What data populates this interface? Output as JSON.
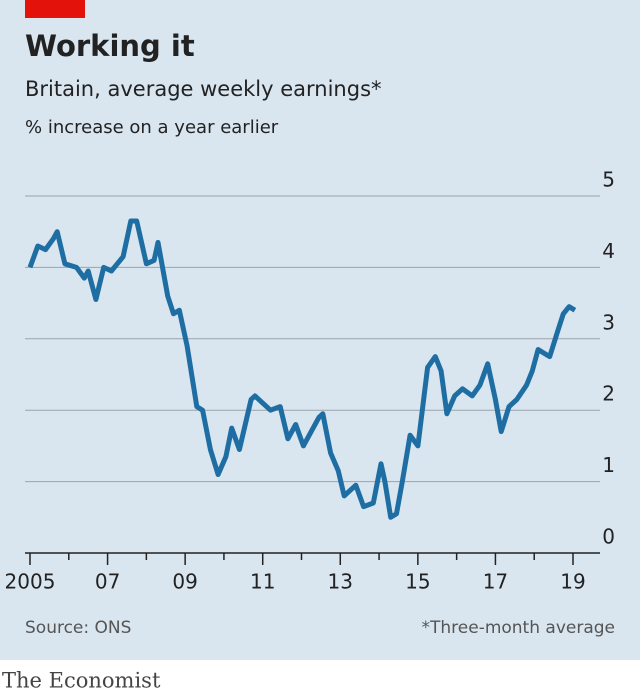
{
  "chart_data": {
    "type": "line",
    "title": "Working it",
    "subtitle": "Britain, average weekly earnings*",
    "unit_label": "% increase on a year earlier",
    "source": "Source: ONS",
    "footnote": "*Three-month average",
    "publisher": "The Economist",
    "ylim": [
      0,
      5
    ],
    "yticks": [
      0,
      1,
      2,
      3,
      4,
      5
    ],
    "grid": true,
    "xlim": [
      2005,
      2019
    ],
    "xticks": [
      2005,
      {
        "value": 2007,
        "label": "07"
      },
      {
        "value": 2009,
        "label": "09"
      },
      {
        "value": 2011,
        "label": "11"
      },
      {
        "value": 2013,
        "label": "13"
      },
      {
        "value": 2015,
        "label": "15"
      },
      {
        "value": 2017,
        "label": "17"
      },
      {
        "value": 2019,
        "label": "19"
      }
    ],
    "xminorticks": [
      2006,
      2008,
      2010,
      2012,
      2014,
      2016,
      2018
    ],
    "x": [
      2005.0,
      2005.2,
      2005.4,
      2005.6,
      2005.7,
      2005.9,
      2006.2,
      2006.4,
      2006.5,
      2006.7,
      2006.9,
      2007.1,
      2007.4,
      2007.6,
      2007.75,
      2008.0,
      2008.2,
      2008.3,
      2008.55,
      2008.7,
      2008.85,
      2009.05,
      2009.3,
      2009.45,
      2009.65,
      2009.85,
      2010.05,
      2010.2,
      2010.4,
      2010.7,
      2010.8,
      2011.0,
      2011.2,
      2011.45,
      2011.65,
      2011.85,
      2012.05,
      2012.25,
      2012.45,
      2012.55,
      2012.75,
      2012.95,
      2013.1,
      2013.4,
      2013.6,
      2013.85,
      2014.05,
      2014.15,
      2014.3,
      2014.45,
      2014.6,
      2014.8,
      2015.0,
      2015.25,
      2015.45,
      2015.6,
      2015.75,
      2015.95,
      2016.15,
      2016.4,
      2016.6,
      2016.8,
      2017.0,
      2017.15,
      2017.35,
      2017.55,
      2017.8,
      2017.95,
      2018.1,
      2018.25,
      2018.4,
      2018.6,
      2018.75,
      2018.9,
      2019.05
    ],
    "series": [
      {
        "name": "Average weekly earnings",
        "color": "#1f6ea3",
        "values": [
          4.0,
          4.3,
          4.25,
          4.4,
          4.5,
          4.05,
          4.0,
          3.85,
          3.95,
          3.55,
          4.0,
          3.95,
          4.15,
          4.65,
          4.65,
          4.05,
          4.1,
          4.35,
          3.6,
          3.35,
          3.4,
          2.9,
          2.05,
          2.0,
          1.45,
          1.1,
          1.35,
          1.75,
          1.45,
          2.15,
          2.2,
          2.1,
          2.0,
          2.05,
          1.6,
          1.8,
          1.5,
          1.7,
          1.9,
          1.95,
          1.4,
          1.15,
          0.8,
          0.95,
          0.65,
          0.7,
          1.25,
          1.0,
          0.5,
          0.55,
          1.0,
          1.65,
          1.5,
          2.6,
          2.75,
          2.55,
          1.95,
          2.2,
          2.3,
          2.2,
          2.35,
          2.65,
          2.15,
          1.7,
          2.05,
          2.15,
          2.35,
          2.55,
          2.85,
          2.8,
          2.75,
          3.1,
          3.35,
          3.45,
          3.4
        ]
      }
    ]
  }
}
